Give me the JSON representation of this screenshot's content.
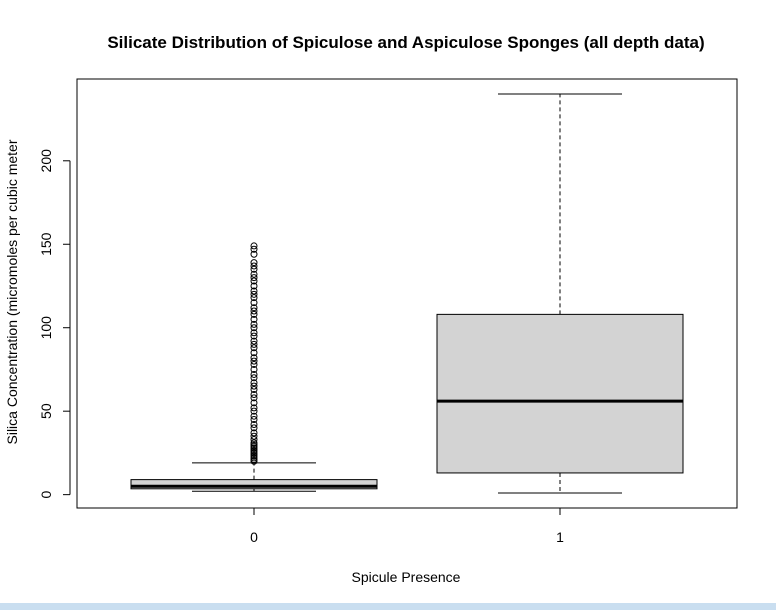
{
  "chart_data": {
    "type": "boxplot",
    "title": "Silicate Distribution of Spiculose and Aspiculose Sponges (all depth data)",
    "xlabel": "Spicule Presence",
    "ylabel": "Silica Concentration (micromoles per cubic meter",
    "ylim": [
      -8,
      249
    ],
    "yticks": [
      0,
      50,
      100,
      150,
      200
    ],
    "categories": [
      "0",
      "1"
    ],
    "grid": false,
    "box_fill_color": "#d3d3d3",
    "series": [
      {
        "category": "0",
        "whisker_low": 2,
        "q1": 3.5,
        "median": 5,
        "q3": 9,
        "whisker_high": 19,
        "outliers": [
          20,
          21,
          22,
          23,
          24,
          25,
          26,
          27,
          28,
          29,
          30,
          31,
          33,
          35,
          37,
          40,
          42,
          45,
          47,
          50,
          52,
          55,
          58,
          60,
          63,
          65,
          67,
          70,
          72,
          75,
          78,
          80,
          82,
          85,
          88,
          90,
          92,
          95,
          97,
          100,
          102,
          105,
          108,
          110,
          112,
          115,
          118,
          120,
          122,
          125,
          128,
          130,
          132,
          135,
          137,
          139,
          144,
          147,
          149
        ]
      },
      {
        "category": "1",
        "whisker_low": 1,
        "q1": 13,
        "median": 56,
        "q3": 108,
        "whisker_high": 240,
        "outliers": []
      }
    ]
  }
}
